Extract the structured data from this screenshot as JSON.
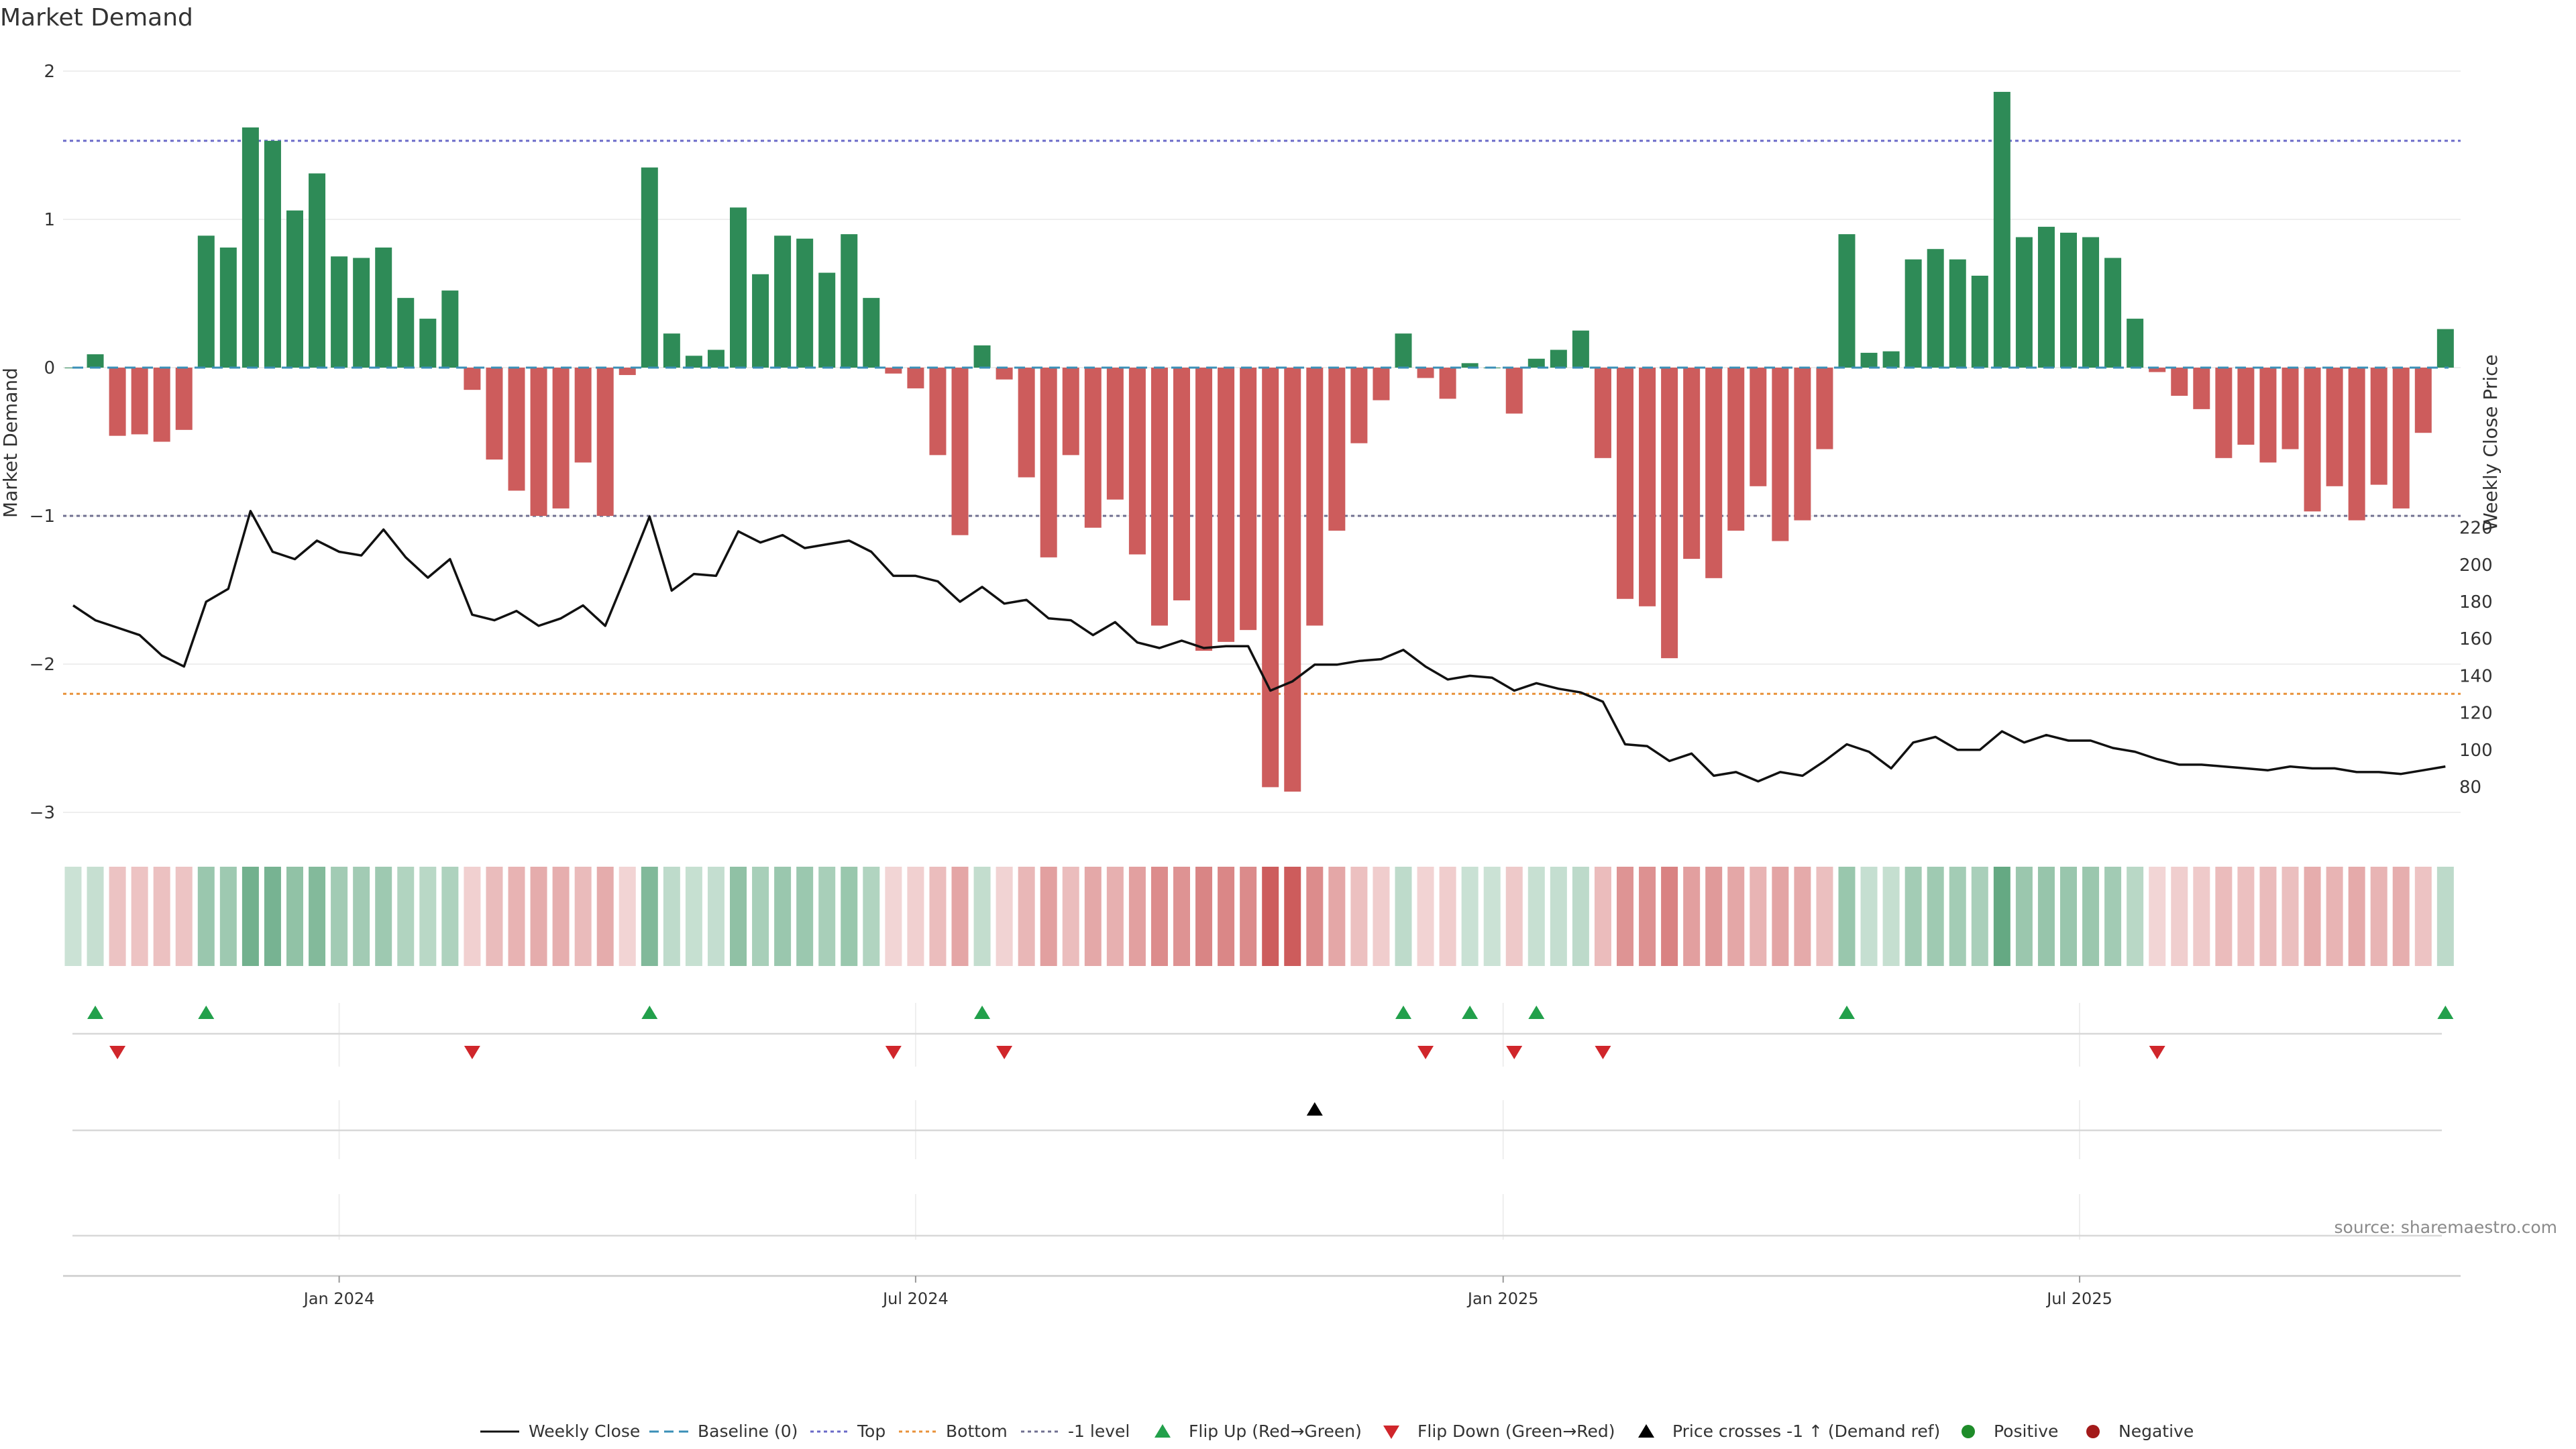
{
  "chart_data": {
    "type": "bar",
    "title": "Market Demand",
    "ylabel": "Market Demand",
    "y2label": "Weekly Close Price",
    "ylim": [
      -3.35,
      2.2
    ],
    "y2lim": [
      75,
      233
    ],
    "yticks": [
      2,
      1,
      0,
      -1,
      -2,
      -3
    ],
    "ytick_labels": [
      "2",
      "1",
      "0",
      "−1",
      "−2",
      "−3"
    ],
    "y2ticks": [
      220,
      200,
      180,
      160,
      140,
      120,
      100,
      80
    ],
    "x_dates": [
      "Jan 2024",
      "Jul 2024",
      "Jan 2025",
      "Jul 2025"
    ],
    "x_date_weeks": [
      12,
      38,
      64.5,
      90.5
    ],
    "reference_lines": [
      {
        "name": "Top",
        "value": 1.53,
        "color": "#6a6ac8"
      },
      {
        "name": "Bottom",
        "value": -2.2,
        "color": "#e8923a"
      },
      {
        "name": "-1 level",
        "value": -1.0,
        "color": "#707090"
      }
    ],
    "demand": [
      0.0,
      0.09,
      -0.46,
      -0.45,
      -0.5,
      -0.42,
      0.89,
      0.81,
      1.62,
      1.53,
      1.06,
      1.31,
      0.75,
      0.74,
      0.81,
      0.47,
      0.33,
      0.52,
      -0.15,
      -0.62,
      -0.83,
      -1.0,
      -0.95,
      -0.64,
      -1.0,
      -0.05,
      1.35,
      0.23,
      0.08,
      0.12,
      1.08,
      0.63,
      0.89,
      0.87,
      0.64,
      0.9,
      0.47,
      -0.04,
      -0.14,
      -0.59,
      -1.13,
      0.15,
      -0.08,
      -0.74,
      -1.28,
      -0.59,
      -1.08,
      -0.89,
      -1.26,
      -1.74,
      -1.57,
      -1.91,
      -1.85,
      -1.77,
      -2.83,
      -2.86,
      -1.74,
      -1.1,
      -0.51,
      -0.22,
      0.23,
      -0.07,
      -0.21,
      0.03,
      0.0,
      -0.31,
      0.06,
      0.12,
      0.25,
      -0.61,
      -1.56,
      -1.61,
      -1.96,
      -1.29,
      -1.42,
      -1.1,
      -0.8,
      -1.17,
      -1.03,
      -0.55,
      0.9,
      0.1,
      0.11,
      0.73,
      0.8,
      0.73,
      0.62,
      1.86,
      0.88,
      0.95,
      0.91,
      0.88,
      0.74,
      0.33,
      -0.03,
      -0.19,
      -0.28,
      -0.61,
      -0.52,
      -0.64,
      -0.55,
      -0.97,
      -0.8,
      -1.03,
      -0.79,
      -0.95,
      -0.44,
      0.26
    ],
    "weekly_close": [
      178,
      170,
      166,
      162,
      151,
      145,
      180,
      187,
      229,
      207,
      203,
      213,
      207,
      205,
      219,
      204,
      193,
      203,
      173,
      170,
      175,
      167,
      171,
      178,
      167,
      196,
      226,
      186,
      195,
      194,
      218,
      212,
      216,
      209,
      211,
      213,
      207,
      194,
      194,
      191,
      180,
      188,
      179,
      181,
      171,
      170,
      162,
      169,
      158,
      155,
      159,
      155,
      156,
      156,
      132,
      137,
      146,
      146,
      148,
      149,
      154,
      145,
      138,
      140,
      139,
      132,
      136,
      133,
      131,
      126,
      103,
      102,
      94,
      98,
      86,
      88,
      83,
      88,
      86,
      94,
      103,
      99,
      90,
      104,
      107,
      100,
      100,
      110,
      104,
      108,
      105,
      105,
      101,
      99,
      95,
      92,
      92,
      91,
      90,
      89,
      91,
      90,
      90,
      88,
      88,
      87,
      89,
      91
    ],
    "flip_up_weeks": [
      1,
      6,
      26,
      41,
      60,
      63,
      66,
      80,
      107
    ],
    "flip_down_weeks": [
      2,
      18,
      37,
      42,
      61,
      65,
      69,
      94
    ],
    "price_cross_weeks": [
      56
    ],
    "legend": [
      "Weekly Close",
      "Baseline (0)",
      "Top",
      "Bottom",
      "-1 level",
      "Flip Up (Red→Green)",
      "Flip Down (Green→Red)",
      "Price crosses -1 ↑ (Demand ref)",
      "Positive",
      "Negative"
    ],
    "colors": {
      "positive": "#2e8b57",
      "negative": "#cd5c5c",
      "price": "#111111",
      "baseline": "#3a8fb7",
      "flip_up": "#22a04b",
      "flip_down": "#d0262b",
      "cross": "#000000",
      "legend_positive": "#1e8c2a",
      "legend_negative": "#a31a1a"
    }
  },
  "source_note": "source: sharemaestro.com"
}
